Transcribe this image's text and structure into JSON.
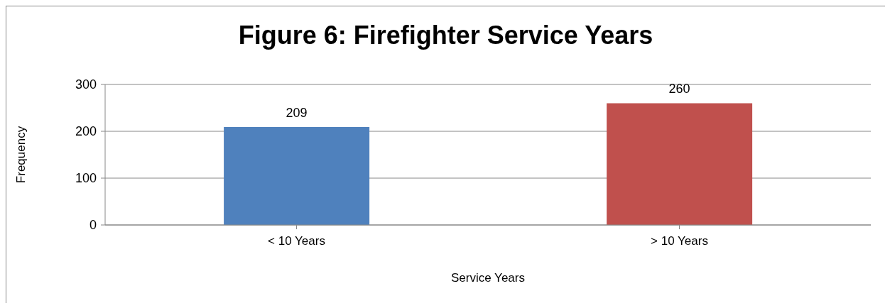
{
  "chart_data": {
    "type": "bar",
    "title": "Figure 6: Firefighter Service Years",
    "xlabel": "Service Years",
    "ylabel": "Frequency",
    "categories": [
      "< 10 Years",
      "> 10 Years"
    ],
    "values": [
      209,
      260
    ],
    "colors": [
      "#4f81bd",
      "#c0504d"
    ],
    "ylim": [
      0,
      300
    ],
    "yticks": [
      0,
      100,
      200,
      300
    ],
    "grid": "y",
    "data_labels": true
  }
}
